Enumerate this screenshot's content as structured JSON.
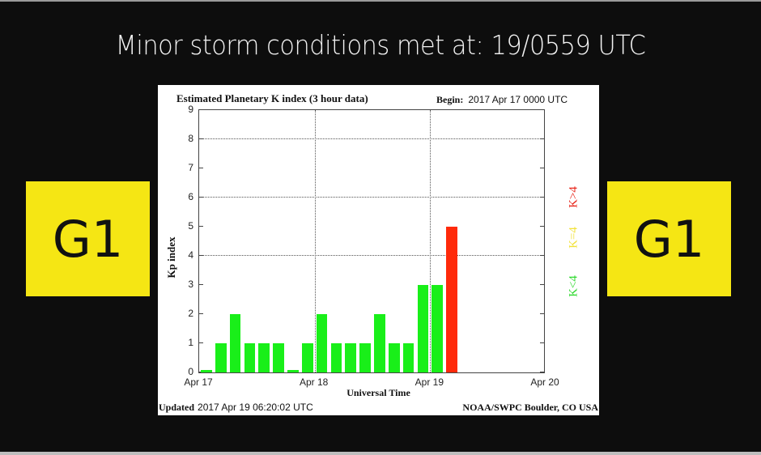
{
  "headline": "Minor storm conditions met at: 19/0559 UTC",
  "badges": {
    "left": "G1",
    "right": "G1",
    "color": "#f5e614"
  },
  "chart": {
    "title": "Estimated Planetary K index (3 hour data)",
    "begin_label": "Begin:",
    "begin_value": "2017 Apr 17 0000 UTC",
    "ylabel": "Kp index",
    "xlabel": "Universal Time",
    "updated_label": "Updated",
    "updated_value": "2017 Apr 19 06:20:02 UTC",
    "source": "NOAA/SWPC Boulder, CO USA",
    "legend": [
      {
        "label": "K>4",
        "color": "#e8261b"
      },
      {
        "label": "K=4",
        "color": "#f2e23a"
      },
      {
        "label": "K<4",
        "color": "#2fd92f"
      }
    ]
  },
  "chart_data": {
    "type": "bar",
    "title": "Estimated Planetary K index (3 hour data)",
    "xlabel": "Universal Time",
    "ylabel": "Kp index",
    "ylim": [
      0,
      9
    ],
    "yticks": [
      0,
      1,
      2,
      3,
      4,
      5,
      6,
      7,
      8,
      9
    ],
    "xticks": [
      "Apr 17",
      "Apr 18",
      "Apr 19",
      "Apr 20"
    ],
    "grid": "dotted at y=4,6,8 and day boundaries",
    "legend_position": "right, vertical",
    "categories": [
      "Apr17 00-03",
      "Apr17 03-06",
      "Apr17 06-09",
      "Apr17 09-12",
      "Apr17 12-15",
      "Apr17 15-18",
      "Apr17 18-21",
      "Apr17 21-24",
      "Apr18 00-03",
      "Apr18 03-06",
      "Apr18 06-09",
      "Apr18 09-12",
      "Apr18 12-15",
      "Apr18 15-18",
      "Apr18 18-21",
      "Apr18 21-24",
      "Apr19 00-03",
      "Apr19 03-06"
    ],
    "values": [
      0,
      1,
      2,
      1,
      1,
      1,
      0,
      1,
      2,
      1,
      1,
      1,
      2,
      1,
      1,
      3,
      3,
      5
    ],
    "colors": [
      "green",
      "green",
      "green",
      "green",
      "green",
      "green",
      "green",
      "green",
      "green",
      "green",
      "green",
      "green",
      "green",
      "green",
      "green",
      "green",
      "green",
      "red"
    ]
  }
}
